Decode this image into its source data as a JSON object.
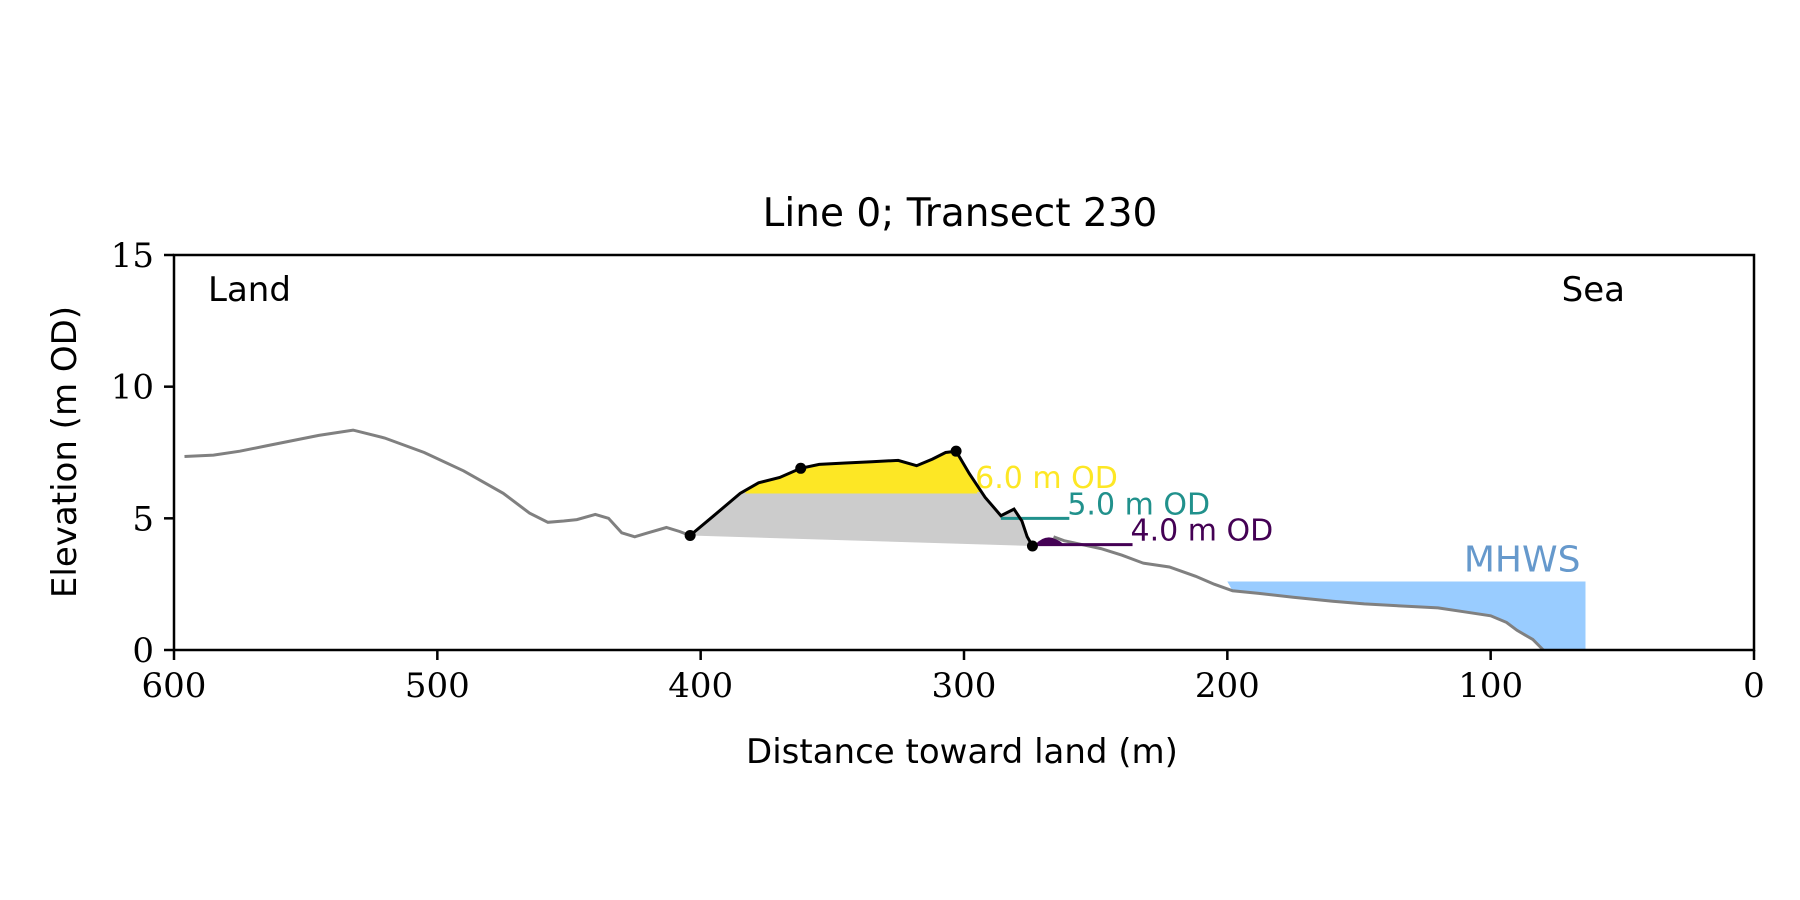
{
  "chart_data": {
    "type": "line",
    "title": "Line 0; Transect 230",
    "xlabel": "Distance toward land (m)",
    "ylabel": "Elevation (m OD)",
    "xlim": [
      600,
      0
    ],
    "ylim": [
      0,
      15
    ],
    "x_ticks": [
      600,
      500,
      400,
      300,
      200,
      100,
      0
    ],
    "y_ticks": [
      0,
      5,
      10,
      15
    ],
    "grid": false,
    "corner_labels": {
      "left": "Land",
      "right": "Sea"
    },
    "profile": {
      "color": "#808080",
      "x": [
        596,
        585,
        575,
        565,
        555,
        545,
        532,
        520,
        505,
        490,
        475,
        465,
        458,
        452,
        447,
        440,
        435,
        430,
        425,
        420,
        413,
        408,
        404
      ],
      "y": [
        7.35,
        7.4,
        7.55,
        7.75,
        7.95,
        8.15,
        8.35,
        8.05,
        7.5,
        6.8,
        5.95,
        5.2,
        4.85,
        4.9,
        4.95,
        5.15,
        5.0,
        4.45,
        4.3,
        4.45,
        4.65,
        4.5,
        4.35
      ]
    },
    "seaward_profile": {
      "color": "#808080",
      "x": [
        266,
        262,
        255,
        248,
        240,
        232,
        222,
        212,
        205,
        198,
        188,
        175,
        160,
        148,
        130,
        120,
        110,
        100,
        94,
        90,
        84,
        80
      ],
      "y": [
        4.3,
        4.15,
        4.0,
        3.85,
        3.6,
        3.3,
        3.15,
        2.8,
        2.5,
        2.25,
        2.15,
        2.0,
        1.85,
        1.75,
        1.65,
        1.6,
        1.45,
        1.3,
        1.05,
        0.75,
        0.4,
        0.0
      ]
    },
    "dune_profile": {
      "color": "#000000",
      "x": [
        404,
        395,
        385,
        378,
        370,
        362,
        355,
        345,
        335,
        325,
        318,
        312,
        307,
        303,
        298,
        292,
        286,
        281,
        278,
        276,
        274
      ],
      "y": [
        4.35,
        5.1,
        5.95,
        6.35,
        6.55,
        6.9,
        7.05,
        7.1,
        7.15,
        7.2,
        7.0,
        7.25,
        7.5,
        7.55,
        6.7,
        5.8,
        5.1,
        5.35,
        4.9,
        4.3,
        3.95
      ]
    },
    "markers": {
      "color": "#000000",
      "x": [
        404,
        362,
        303,
        274
      ],
      "y": [
        4.35,
        6.9,
        7.55,
        3.95
      ]
    },
    "volume_fill": {
      "color": "#cccccc",
      "below_level": 6.0,
      "base_x": [
        404,
        274
      ],
      "base_y": [
        4.35,
        3.95
      ]
    },
    "levels": [
      {
        "label": "6.0 m OD",
        "value": 6.0,
        "color": "#fde725",
        "x": [
          383,
          295
        ]
      },
      {
        "label": "5.0 m OD",
        "value": 5.0,
        "color": "#21918c",
        "x": [
          286,
          260
        ]
      },
      {
        "label": "4.0 m OD",
        "value": 4.0,
        "color": "#440154",
        "x": [
          272,
          236
        ]
      }
    ],
    "mhws": {
      "label": "MHWS",
      "value": 2.6,
      "x_start": 200,
      "x_end": 64,
      "fill_color": "#99ccff",
      "label_color": "#6699cc"
    }
  }
}
